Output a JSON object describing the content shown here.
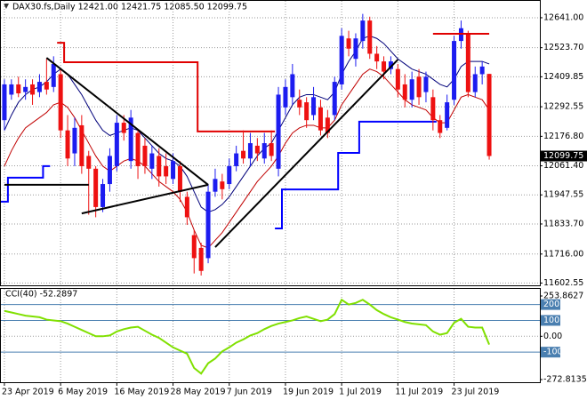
{
  "chart_data": [
    {
      "type": "candlestick",
      "title": "DAX30.fs,Daily  12421.00 12421.75 12085.50 12099.75",
      "categories": [
        "23 Apr 2019",
        null,
        null,
        null,
        null,
        null,
        null,
        null,
        "6 May 2019",
        null,
        null,
        null,
        null,
        null,
        null,
        null,
        "16 May 2019",
        null,
        null,
        null,
        null,
        null,
        null,
        null,
        "28 May 2019",
        null,
        null,
        null,
        null,
        null,
        null,
        null,
        "7 Jun 2019",
        null,
        null,
        null,
        null,
        null,
        null,
        null,
        "19 Jun 2019",
        null,
        null,
        null,
        null,
        null,
        null,
        null,
        "1 Jul 2019",
        null,
        null,
        null,
        null,
        null,
        null,
        null,
        "11 Jul 2019",
        null,
        null,
        null,
        null,
        null,
        null,
        null,
        "23 Jul 2019",
        null,
        null,
        null,
        null,
        null
      ],
      "open": [
        12240,
        12340,
        12380,
        12350,
        12380,
        12350,
        12390,
        12370,
        12420,
        12200,
        12110,
        12220,
        12100,
        12050,
        11900,
        11990,
        12060,
        12230,
        12080,
        12190,
        12140,
        12050,
        12100,
        12060,
        12010,
        12060,
        11940,
        11790,
        11740,
        11700,
        11960,
        12000,
        11990,
        12060,
        12120,
        12090,
        12140,
        12090,
        12150,
        12050,
        12290,
        12330,
        12320,
        12310,
        12260,
        12290,
        12250,
        12260,
        12380,
        12560,
        12480,
        12550,
        12630,
        12500,
        12470,
        12440,
        12440,
        12380,
        12320,
        12410,
        12350,
        12330,
        12240,
        12210,
        12320,
        12550,
        12580,
        12350,
        12420,
        12421
      ],
      "high": [
        12400,
        12400,
        12410,
        12400,
        12400,
        12420,
        12480,
        12490,
        12440,
        12260,
        12250,
        12260,
        12120,
        12060,
        12010,
        12130,
        12260,
        12260,
        12280,
        12200,
        12170,
        12140,
        12130,
        12110,
        12110,
        12080,
        11960,
        11810,
        11760,
        11990,
        12050,
        12030,
        12090,
        12140,
        12200,
        12190,
        12170,
        12190,
        12200,
        12370,
        12400,
        12460,
        12360,
        12330,
        12370,
        12320,
        12280,
        12410,
        12600,
        12590,
        12580,
        12656,
        12645,
        12530,
        12490,
        12490,
        12460,
        12420,
        12430,
        12440,
        12430,
        12360,
        12260,
        12340,
        12570,
        12630,
        12590,
        12450,
        12470,
        12421.75
      ],
      "low": [
        12200,
        12320,
        12330,
        12320,
        12300,
        12330,
        12340,
        12350,
        12170,
        12060,
        12060,
        12030,
        11870,
        11860,
        11880,
        11960,
        12040,
        12160,
        12050,
        12010,
        12030,
        12010,
        11980,
        11990,
        11990,
        11920,
        11830,
        11640,
        11632,
        11680,
        11940,
        11930,
        11970,
        12040,
        12070,
        12060,
        12080,
        12070,
        12080,
        12020,
        12260,
        12300,
        12260,
        12210,
        12240,
        12180,
        12170,
        12240,
        12360,
        12490,
        12450,
        12520,
        12480,
        12440,
        12400,
        12420,
        12330,
        12290,
        12290,
        12300,
        12310,
        12200,
        12170,
        12200,
        12300,
        12520,
        12330,
        12330,
        12380,
        12085.5
      ],
      "close": [
        12380,
        12380,
        12345,
        12370,
        12340,
        12390,
        12360,
        12460,
        12200,
        12090,
        12210,
        12060,
        12050,
        11900,
        11990,
        12100,
        12230,
        12190,
        12250,
        12060,
        12060,
        12110,
        12020,
        12020,
        12080,
        11960,
        11860,
        11700,
        11650,
        11960,
        12010,
        11970,
        12060,
        12110,
        12090,
        12150,
        12110,
        12150,
        12100,
        12340,
        12370,
        12420,
        12290,
        12240,
        12330,
        12200,
        12190,
        12390,
        12570,
        12520,
        12560,
        12630,
        12500,
        12470,
        12430,
        12470,
        12360,
        12320,
        12400,
        12330,
        12410,
        12240,
        12190,
        12310,
        12550,
        12600,
        12350,
        12420,
        12450,
        12099.75
      ],
      "bull_color": "#1c1cf0",
      "bear_color": "#ee1111",
      "lines": [
        {
          "color": "#00007a",
          "values": [
            12200,
            12260,
            12310,
            12340,
            12360,
            12370,
            12390,
            12420,
            12440,
            12420,
            12380,
            12340,
            12290,
            12240,
            12200,
            12180,
            12190,
            12200,
            12210,
            12200,
            12170,
            12140,
            12110,
            12090,
            12080,
            12060,
            12020,
            11960,
            11900,
            11880,
            11890,
            11910,
            11940,
            11980,
            12020,
            12060,
            12100,
            12130,
            12150,
            12200,
            12250,
            12300,
            12330,
            12340,
            12340,
            12330,
            12320,
            12350,
            12420,
            12470,
            12510,
            12560,
            12570,
            12560,
            12540,
            12510,
            12480,
            12460,
            12440,
            12430,
            12420,
            12400,
            12380,
            12370,
            12400,
            12450,
            12470,
            12470,
            12470,
            12460
          ]
        },
        {
          "color": "#c00000",
          "values": [
            12060,
            12120,
            12170,
            12210,
            12230,
            12250,
            12270,
            12300,
            12310,
            12290,
            12250,
            12200,
            12150,
            12100,
            12060,
            12040,
            12060,
            12080,
            12090,
            12080,
            12060,
            12030,
            12000,
            11980,
            11960,
            11930,
            11880,
            11810,
            11750,
            11740,
            11770,
            11800,
            11840,
            11880,
            11920,
            11960,
            12000,
            12030,
            12060,
            12100,
            12150,
            12190,
            12210,
            12220,
            12220,
            12210,
            12210,
            12240,
            12300,
            12340,
            12380,
            12420,
            12440,
            12430,
            12410,
            12380,
            12350,
            12320,
            12300,
            12290,
            12280,
            12250,
            12230,
            12230,
            12280,
            12330,
            12340,
            12330,
            12320,
            12280
          ]
        }
      ],
      "steps": [
        {
          "color": "#e00000",
          "values": [
            null,
            null,
            null,
            null,
            null,
            null,
            null,
            null,
            12543,
            12467,
            12467,
            12467,
            12467,
            12467,
            12467,
            12467,
            12467,
            12467,
            12467,
            12467,
            12467,
            12467,
            12467,
            12467,
            12467,
            12467,
            12467,
            12467,
            12196,
            12196,
            12196,
            12196,
            12196,
            12196,
            12196,
            12196,
            12196,
            12196,
            12196,
            null,
            null,
            null,
            null,
            null,
            null,
            null,
            null,
            null,
            null,
            null,
            null,
            null,
            null,
            null,
            null,
            null,
            null,
            null,
            null,
            null,
            null,
            null,
            null,
            null,
            null,
            null,
            null,
            null,
            null,
            null
          ]
        },
        {
          "color": "#0000ff",
          "values": [
            11921,
            12015,
            12015,
            12015,
            12015,
            12015,
            12060,
            null,
            null,
            null,
            null,
            null,
            null,
            null,
            null,
            null,
            null,
            null,
            null,
            null,
            null,
            null,
            null,
            null,
            null,
            null,
            null,
            null,
            null,
            null,
            null,
            null,
            null,
            null,
            null,
            null,
            null,
            null,
            null,
            11816,
            11969,
            11969,
            11969,
            11969,
            11969,
            11969,
            11969,
            11969,
            12112,
            12112,
            12112,
            12234,
            12234,
            12234,
            12234,
            12234,
            12234,
            12234,
            12234,
            12234,
            12234,
            12234,
            null,
            null,
            null,
            null,
            null,
            null,
            null,
            null
          ]
        }
      ],
      "trendlines": [
        {
          "color": "#000000",
          "x": [
            6,
            29
          ],
          "y": [
            12484,
            11987
          ]
        },
        {
          "color": "#000000",
          "x": [
            11,
            29
          ],
          "y": [
            11875,
            11987
          ]
        },
        {
          "color": "#000000",
          "x": [
            0,
            12
          ],
          "y": [
            11987,
            11987
          ]
        },
        {
          "color": "#000000",
          "x": [
            30,
            56
          ],
          "y": [
            11743,
            12477
          ]
        },
        {
          "color": "#e00000",
          "x": [
            61,
            69
          ],
          "y": [
            12578,
            12578
          ]
        }
      ],
      "ylim": [
        11597,
        12693
      ],
      "yticks": [
        {
          "value": 12641,
          "label": "12641.00"
        },
        {
          "value": 12523.7,
          "label": "12523.70"
        },
        12409.85,
        12292.55,
        {
          "value": 12176.8,
          "label": "12176.80"
        },
        {
          "value": 12061.4,
          "label": "12061.40"
        },
        11947.55,
        {
          "value": 11833.7,
          "label": "11833.70"
        },
        {
          "value": 11716,
          "label": "11716.00"
        },
        11602.55
      ],
      "grid": true
    },
    {
      "type": "line",
      "title": "CCI(40) -52.2897",
      "values": [
        160,
        150,
        140,
        130,
        125,
        120,
        105,
        100,
        95,
        80,
        60,
        40,
        20,
        0,
        0,
        5,
        30,
        45,
        55,
        60,
        35,
        10,
        -10,
        -40,
        -70,
        -90,
        -110,
        -200,
        -235,
        -170,
        -140,
        -95,
        -70,
        -40,
        -20,
        5,
        20,
        45,
        65,
        80,
        90,
        100,
        115,
        125,
        110,
        95,
        105,
        140,
        230,
        200,
        210,
        230,
        200,
        165,
        140,
        120,
        105,
        90,
        80,
        75,
        70,
        30,
        10,
        20,
        85,
        110,
        60,
        55,
        55,
        -52.2897
      ],
      "color": "#80e000",
      "ylim": [
        -272.8135,
        253.8627
      ],
      "yticks": [
        253.8627,
        200,
        100,
        {
          "value": 0,
          "label": "0.00"
        },
        -100,
        -272.8135
      ],
      "levels": [
        200,
        100,
        -100
      ],
      "level_color": "#4a7fb0"
    }
  ]
}
